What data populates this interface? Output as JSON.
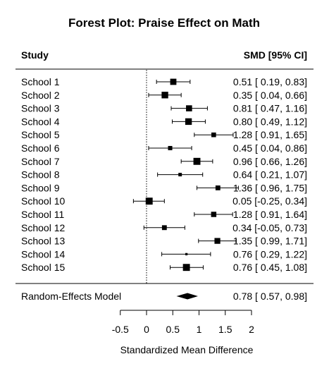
{
  "chart_data": {
    "type": "forest",
    "title": "Forest Plot: Praise Effect on Math",
    "header_left": "Study",
    "header_right": "SMD [95% CI]",
    "xlabel": "Standardized Mean Difference",
    "xlim": [
      -0.5,
      2
    ],
    "ticks": [
      -0.5,
      0,
      0.5,
      1,
      1.5,
      2
    ],
    "tick_labels": [
      "-0.5",
      "0",
      "0.5",
      "1",
      "1.5",
      "2"
    ],
    "studies": [
      {
        "label": "School 1",
        "est": 0.51,
        "lo": 0.19,
        "hi": 0.83,
        "text": "0.51 [ 0.19, 0.83]",
        "weight": 0.8
      },
      {
        "label": "School 2",
        "est": 0.35,
        "lo": 0.04,
        "hi": 0.66,
        "text": "0.35 [ 0.04, 0.66]",
        "weight": 0.85
      },
      {
        "label": "School 3",
        "est": 0.81,
        "lo": 0.47,
        "hi": 1.16,
        "text": "0.81 [ 0.47, 1.16]",
        "weight": 0.78
      },
      {
        "label": "School 4",
        "est": 0.8,
        "lo": 0.49,
        "hi": 1.12,
        "text": "0.80 [ 0.49, 1.12]",
        "weight": 0.85
      },
      {
        "label": "School 5",
        "est": 1.28,
        "lo": 0.91,
        "hi": 1.65,
        "text": "1.28 [ 0.91, 1.65]",
        "weight": 0.6
      },
      {
        "label": "School 6",
        "est": 0.45,
        "lo": 0.04,
        "hi": 0.86,
        "text": "0.45 [ 0.04, 0.86]",
        "weight": 0.55
      },
      {
        "label": "School 7",
        "est": 0.96,
        "lo": 0.66,
        "hi": 1.26,
        "text": "0.96 [ 0.66, 1.26]",
        "weight": 0.9
      },
      {
        "label": "School 8",
        "est": 0.64,
        "lo": 0.21,
        "hi": 1.07,
        "text": "0.64 [ 0.21, 1.07]",
        "weight": 0.45
      },
      {
        "label": "School 9",
        "est": 1.36,
        "lo": 0.96,
        "hi": 1.75,
        "text": "1.36 [ 0.96, 1.75]",
        "weight": 0.62
      },
      {
        "label": "School 10",
        "est": 0.05,
        "lo": -0.25,
        "hi": 0.34,
        "text": "0.05 [-0.25, 0.34]",
        "weight": 0.9
      },
      {
        "label": "School 11",
        "est": 1.28,
        "lo": 0.91,
        "hi": 1.64,
        "text": "1.28 [ 0.91, 1.64]",
        "weight": 0.68
      },
      {
        "label": "School 12",
        "est": 0.34,
        "lo": -0.05,
        "hi": 0.73,
        "text": "0.34 [-0.05, 0.73]",
        "weight": 0.62
      },
      {
        "label": "School 13",
        "est": 1.35,
        "lo": 0.99,
        "hi": 1.71,
        "text": "1.35 [ 0.99, 1.71]",
        "weight": 0.75
      },
      {
        "label": "School 14",
        "est": 0.76,
        "lo": 0.29,
        "hi": 1.22,
        "text": "0.76 [ 0.29, 1.22]",
        "weight": 0.3
      },
      {
        "label": "School 15",
        "est": 0.76,
        "lo": 0.45,
        "hi": 1.08,
        "text": "0.76 [ 0.45, 1.08]",
        "weight": 0.9
      }
    ],
    "summary": {
      "label": "Random-Effects Model",
      "est": 0.78,
      "lo": 0.57,
      "hi": 0.98,
      "text": "0.78 [ 0.57, 0.98]"
    },
    "reference_line": 0,
    "grid": false
  }
}
